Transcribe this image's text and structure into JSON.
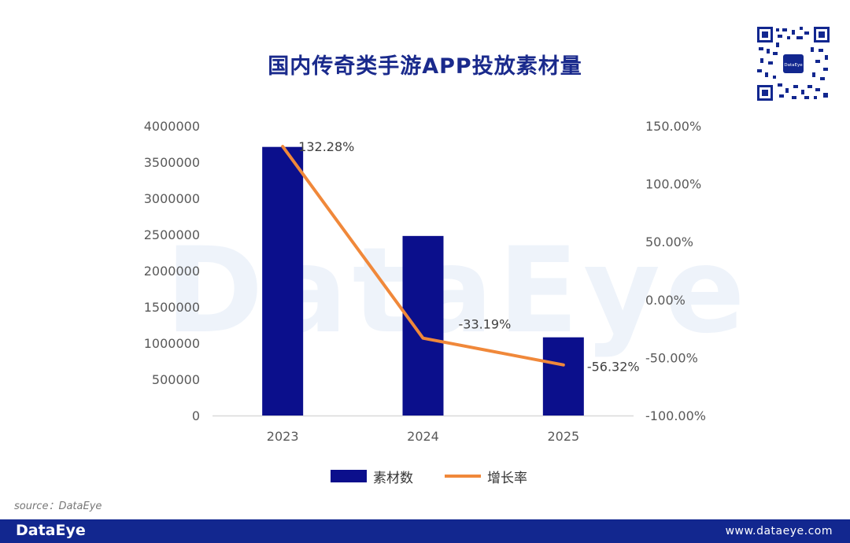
{
  "title": "国内传奇类手游APP投放素材量",
  "watermark_text": "DataEye",
  "qr_label": "DataEye",
  "source_text": "source：DataEye",
  "footer": {
    "logo": "DataEye",
    "url": "www.dataeye.com"
  },
  "colors": {
    "bar": "#0b0f8c",
    "line": "#f0883a",
    "footer": "#12278f",
    "title": "#1a2a8c"
  },
  "chart_data": {
    "type": "bar",
    "categories": [
      "2023",
      "2024",
      "2025"
    ],
    "series": [
      {
        "name": "素材数",
        "type": "bar",
        "axis": "left",
        "values": [
          3710000,
          2480000,
          1080000
        ]
      },
      {
        "name": "增长率",
        "type": "line",
        "axis": "right",
        "values": [
          132.28,
          -33.19,
          -56.32
        ],
        "data_labels": [
          "132.28%",
          "-33.19%",
          "-56.32%"
        ]
      }
    ],
    "y_left": {
      "min": 0,
      "max": 4000000,
      "step": 500000,
      "tick_labels": [
        "0",
        "500000",
        "1000000",
        "1500000",
        "2000000",
        "2500000",
        "3000000",
        "3500000",
        "4000000"
      ]
    },
    "y_right": {
      "min": -100,
      "max": 150,
      "step": 50,
      "tick_labels": [
        "-100.00%",
        "-50.00%",
        "0.00%",
        "50.00%",
        "100.00%",
        "150.00%"
      ]
    },
    "legend": {
      "position": "bottom",
      "items": [
        "素材数",
        "增长率"
      ]
    },
    "grid": false
  }
}
